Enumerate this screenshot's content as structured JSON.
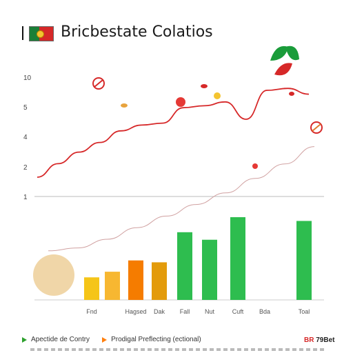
{
  "header": {
    "title": "Bricbestate Colatios"
  },
  "footer": {
    "brand_prefix": "BR",
    "brand_suffix": "79Bet"
  },
  "legend": [
    {
      "label": "Apectide de Contry",
      "color": "#2ca02c"
    },
    {
      "label": "Prodigal Preflecting (ectional)",
      "color": "#ff7f0e"
    }
  ],
  "chart_data": {
    "type": "bar",
    "categories": [
      "",
      "Fnd",
      "",
      "Hagsed",
      "Dak",
      "Fall",
      "Nut",
      "Cuft",
      "Bda",
      "Toal"
    ],
    "y_ticks": [
      "10",
      "5",
      "4",
      "2",
      "1"
    ],
    "bar_series": [
      {
        "values": [
          1.3,
          1.2,
          1.5,
          2.1,
          2.0,
          3.6,
          3.2,
          4.4,
          0,
          4.2
        ],
        "colors": [
          "#f0d6a8",
          "#f5c518",
          "#f7b731",
          "#f57c00",
          "#e39b0b",
          "#2ebd4f",
          "#2ebd4f",
          "#2ebd4f",
          "#2ebd4f",
          "#2ebd4f"
        ]
      }
    ],
    "line_series": [
      {
        "color": "#d62728",
        "values": [
          1.0,
          1.7,
          2.3,
          2.8,
          3.4,
          3.7,
          3.8,
          4.6,
          4.7,
          4.9,
          4.0,
          5.5,
          5.6,
          5.3
        ]
      },
      {
        "color": "#d0a0a0",
        "values": [
          0.1,
          0.2,
          0.5,
          0.9,
          1.3,
          1.7,
          2.1,
          2.6,
          3.1,
          3.7
        ]
      }
    ],
    "grid": false,
    "legend_position": "bottom-left"
  },
  "colors": {
    "accent_red": "#d62828",
    "accent_green": "#2ebd4f",
    "axis": "#999999"
  }
}
